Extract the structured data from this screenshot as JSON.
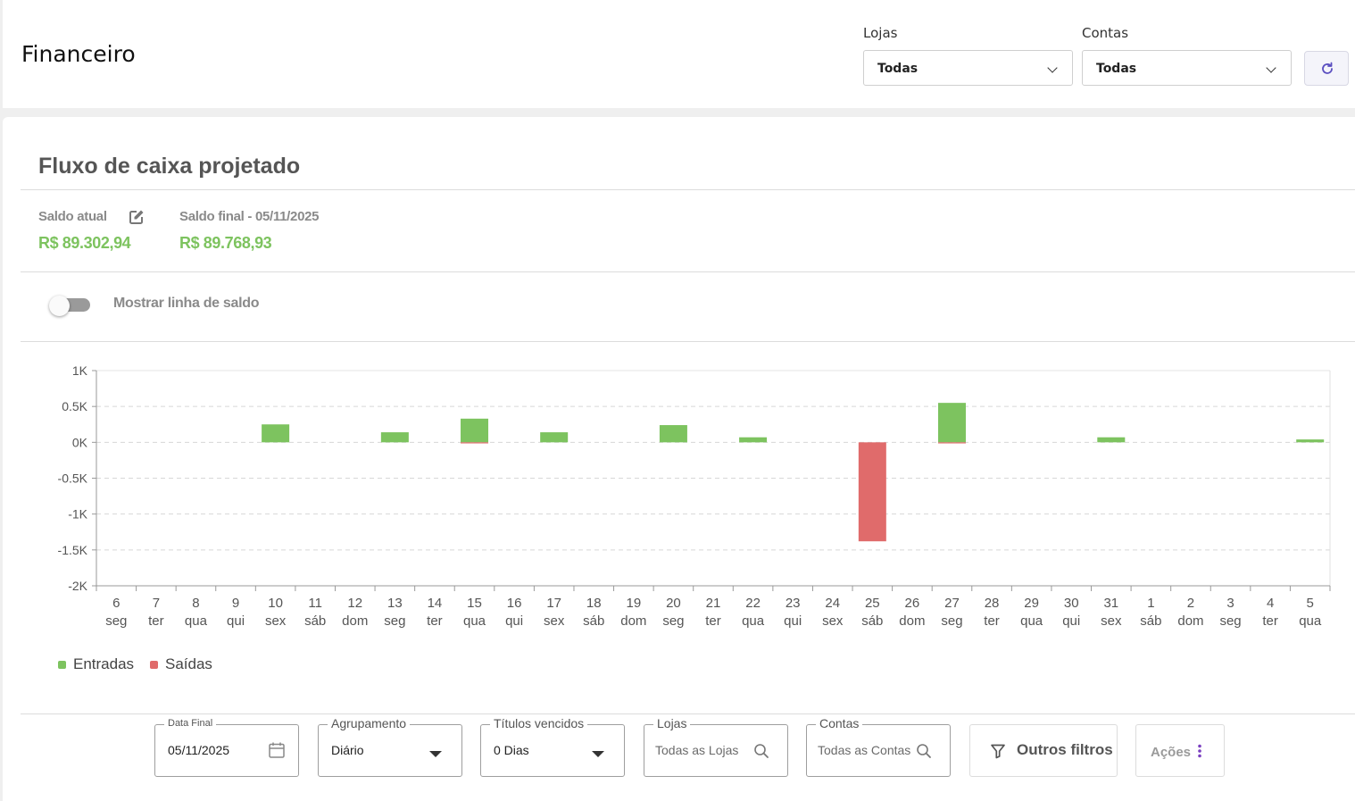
{
  "header": {
    "title": "Financeiro",
    "lojas_label": "Lojas",
    "lojas_value": "Todas",
    "contas_label": "Contas",
    "contas_value": "Todas",
    "refresh_icon": "refresh-icon"
  },
  "card": {
    "title": "Fluxo de caixa projetado",
    "saldo_atual_label": "Saldo atual",
    "saldo_atual_value": "R$ 89.302,94",
    "saldo_final_label": "Saldo final - 05/11/2025",
    "saldo_final_value": "R$ 89.768,93",
    "toggle_label": "Mostrar linha de saldo",
    "toggle_on": false
  },
  "chart_data": {
    "type": "bar",
    "ylim": [
      -2000,
      1000
    ],
    "yticks": [
      1000,
      500,
      0,
      -500,
      -1000,
      -1500,
      -2000
    ],
    "ytick_labels": [
      "1K",
      "0.5K",
      "0K",
      "-0.5K",
      "-1K",
      "-1.5K",
      "-2K"
    ],
    "grid": true,
    "legend_position": "bottom-left",
    "categories": [
      "6",
      "7",
      "8",
      "9",
      "10",
      "11",
      "12",
      "13",
      "14",
      "15",
      "16",
      "17",
      "18",
      "19",
      "20",
      "21",
      "22",
      "23",
      "24",
      "25",
      "26",
      "27",
      "28",
      "29",
      "30",
      "31",
      "1",
      "2",
      "3",
      "4",
      "5"
    ],
    "weekdays": [
      "seg",
      "ter",
      "qua",
      "qui",
      "sex",
      "sáb",
      "dom",
      "seg",
      "ter",
      "qua",
      "qui",
      "sex",
      "sáb",
      "dom",
      "seg",
      "ter",
      "qua",
      "qui",
      "sex",
      "sáb",
      "dom",
      "seg",
      "ter",
      "qua",
      "qui",
      "sex",
      "sáb",
      "dom",
      "seg",
      "ter",
      "qua"
    ],
    "series": [
      {
        "name": "Entradas",
        "color": "#7dc35f",
        "values": [
          0,
          0,
          0,
          0,
          250,
          0,
          0,
          140,
          0,
          330,
          0,
          140,
          0,
          0,
          240,
          0,
          70,
          0,
          0,
          0,
          0,
          550,
          0,
          0,
          0,
          70,
          0,
          0,
          0,
          0,
          40
        ]
      },
      {
        "name": "Saídas",
        "color": "#e06b6b",
        "values": [
          0,
          0,
          0,
          0,
          0,
          0,
          0,
          0,
          0,
          -15,
          0,
          0,
          0,
          0,
          0,
          0,
          0,
          0,
          0,
          -1380,
          0,
          -15,
          0,
          0,
          0,
          0,
          0,
          0,
          0,
          0,
          0
        ]
      }
    ]
  },
  "filters": {
    "data_final_label": "Data Final",
    "data_final_value": "05/11/2025",
    "agrupamento_label": "Agrupamento",
    "agrupamento_value": "Diário",
    "titulos_label": "Títulos vencidos",
    "titulos_value": "0 Dias",
    "lojas_label": "Lojas",
    "lojas_placeholder": "Todas as Lojas",
    "contas_label": "Contas",
    "contas_placeholder": "Todas as Contas",
    "outros_filtros_label": "Outros filtros",
    "acoes_label": "Ações"
  }
}
